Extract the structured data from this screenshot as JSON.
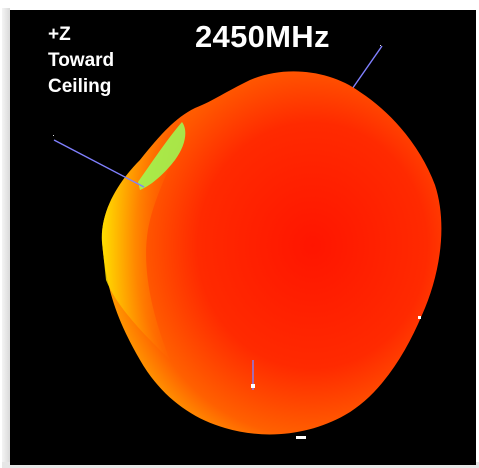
{
  "title": "2450MHz",
  "axis_label": {
    "line1": "+Z",
    "line2": "Toward",
    "line3": "Ceiling"
  },
  "colors": {
    "background": "#000000",
    "lobe_main": "#ff2200",
    "lobe_mid": "#ff7a00",
    "lobe_edge": "#ffee00",
    "lobe_low": "#8cff4a",
    "axis_line": "#7777ff"
  }
}
